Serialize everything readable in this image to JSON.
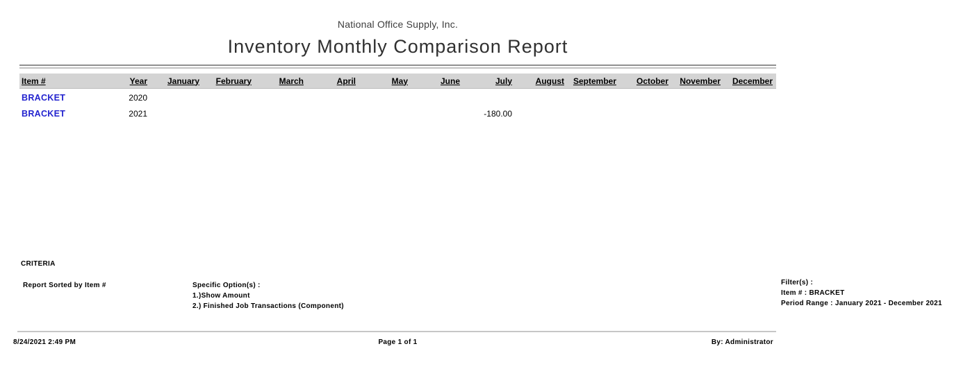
{
  "report": {
    "company": "National Office Supply, Inc.",
    "title": "Inventory Monthly Comparison Report"
  },
  "table": {
    "headers": {
      "item": "Item #",
      "year": "Year",
      "months": [
        "January",
        "February",
        "March",
        "April",
        "May",
        "June",
        "July",
        "August",
        "September",
        "October",
        "November",
        "December"
      ]
    },
    "rows": [
      {
        "item": "BRACKET",
        "year": "2020",
        "values": [
          "",
          "",
          "",
          "",
          "",
          "",
          "",
          "",
          "",
          "",
          "",
          ""
        ]
      },
      {
        "item": "BRACKET",
        "year": "2021",
        "values": [
          "",
          "",
          "",
          "",
          "",
          "",
          "-180.00",
          "",
          "",
          "",
          "",
          ""
        ]
      }
    ]
  },
  "criteria": {
    "heading": "CRITERIA",
    "sorted_by": "Report Sorted by Item #",
    "options": {
      "title": "Specific Option(s) :",
      "line1": "1.)Show Amount",
      "line2": "2.) Finished Job Transactions (Component)"
    },
    "filters": {
      "title": "Filter(s) :",
      "line1": "Item # : BRACKET",
      "line2": "Period Range : January 2021 - December 2021"
    }
  },
  "footer": {
    "datetime": "8/24/2021 2:49 PM",
    "page": "Page 1 of 1",
    "by": "By: Administrator"
  },
  "colors": {
    "link": "#2323cf",
    "header_bar": "#d4d4d4",
    "rule": "#909090",
    "rule_light": "#c2c2c2",
    "footer_rule": "#c6c6c6"
  }
}
